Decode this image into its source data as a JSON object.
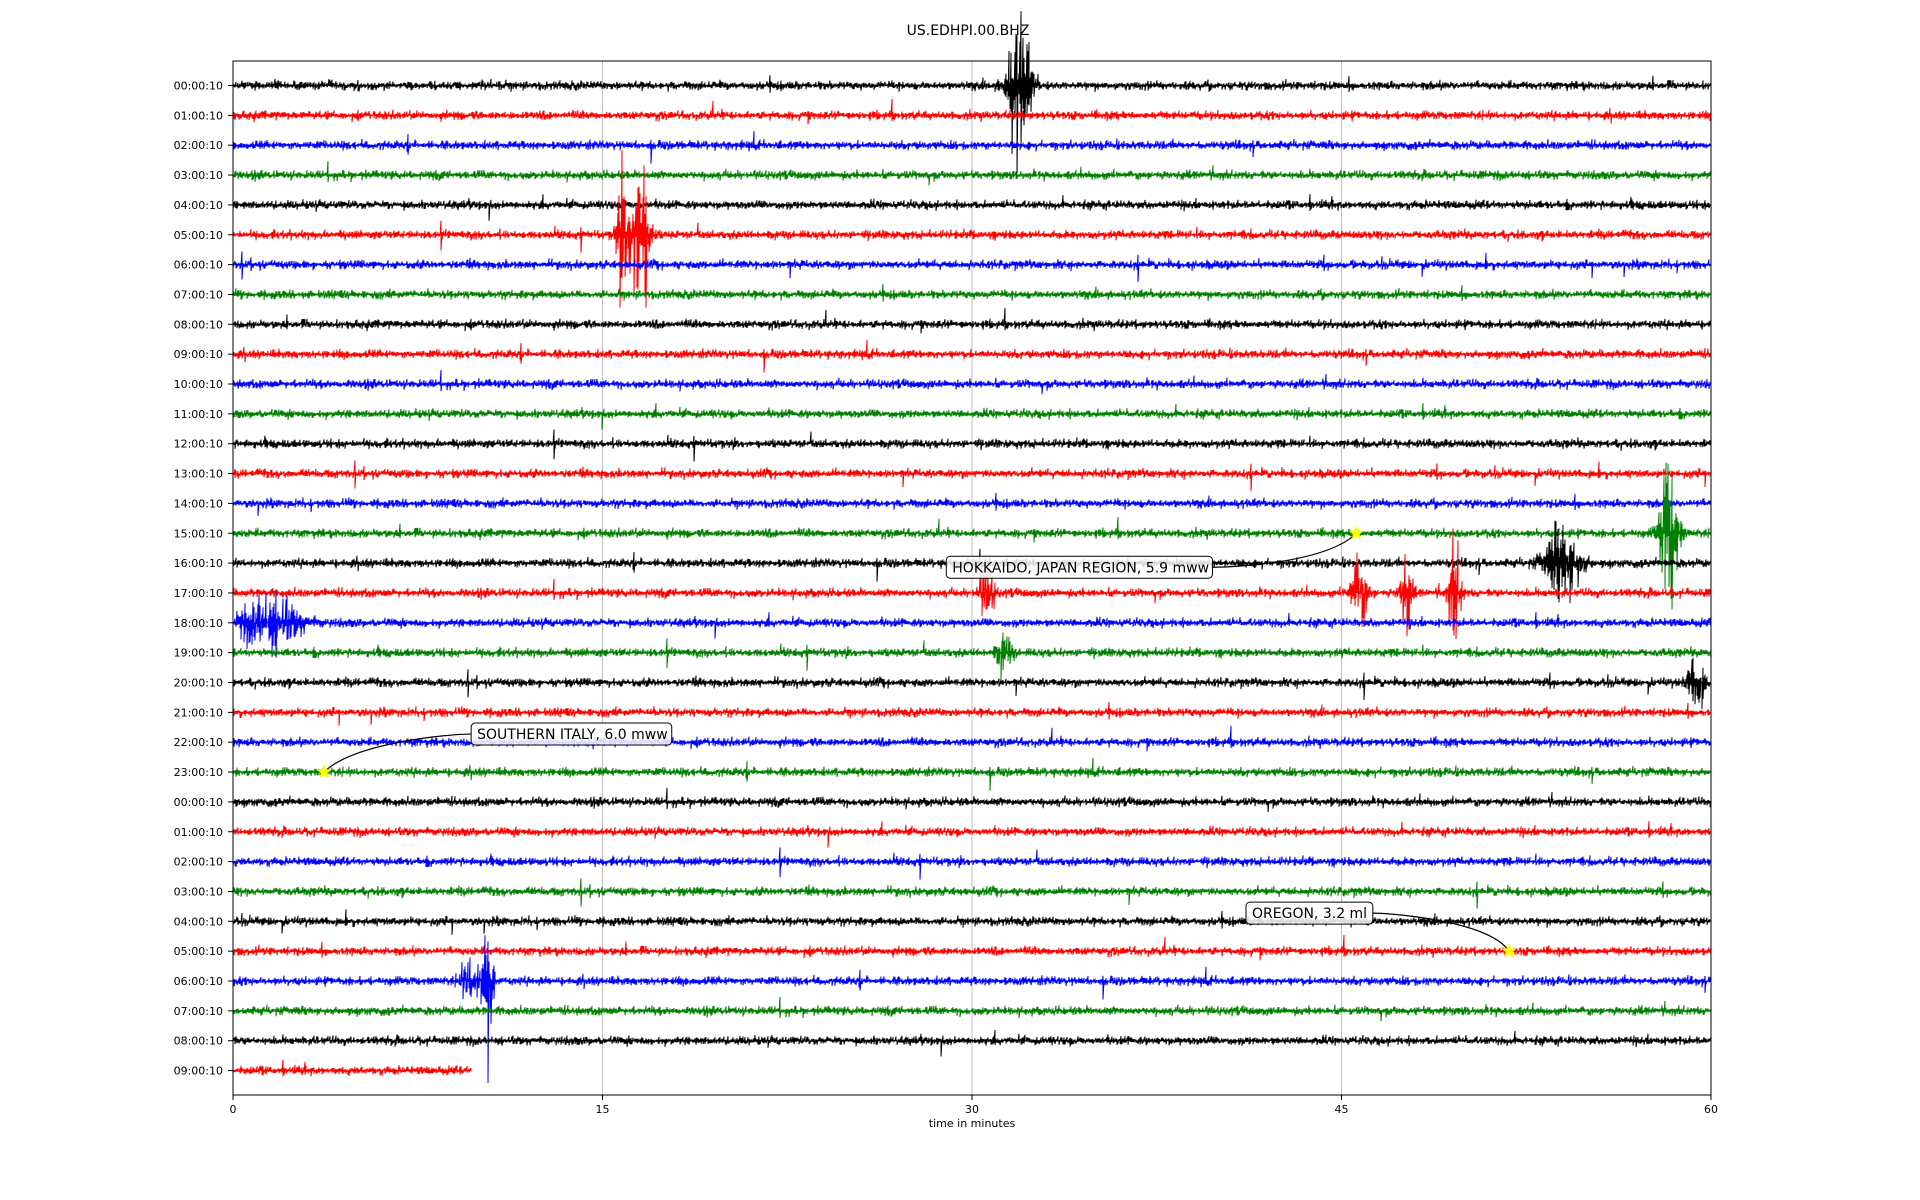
{
  "chart_data": {
    "type": "line",
    "title": "US.EDHPI.00.BHZ",
    "xlabel": "time in minutes",
    "ylabel": "",
    "xlim": [
      0,
      60
    ],
    "x_ticks": [
      0,
      15,
      30,
      45,
      60
    ],
    "x_tick_labels": [
      "0",
      "15",
      "30",
      "45",
      "60"
    ],
    "grid": "vertical gridlines at each x tick",
    "trace_colors": [
      "#000000",
      "#ff0000",
      "#0000ff",
      "#008000"
    ],
    "row_labels": [
      "00:00:10",
      "01:00:10",
      "02:00:10",
      "03:00:10",
      "04:00:10",
      "05:00:10",
      "06:00:10",
      "07:00:10",
      "08:00:10",
      "09:00:10",
      "10:00:10",
      "11:00:10",
      "12:00:10",
      "13:00:10",
      "14:00:10",
      "15:00:10",
      "16:00:10",
      "17:00:10",
      "18:00:10",
      "19:00:10",
      "20:00:10",
      "21:00:10",
      "22:00:10",
      "23:00:10",
      "00:00:10",
      "01:00:10",
      "02:00:10",
      "03:00:10",
      "04:00:10",
      "05:00:10",
      "06:00:10",
      "07:00:10",
      "08:00:10",
      "09:00:10"
    ],
    "last_row_end_minute": 9.7,
    "events": [
      {
        "row": 0,
        "minute": 31.9,
        "amplitude": 1.8,
        "width": 0.8
      },
      {
        "row": 5,
        "minute": 16.5,
        "amplitude": 3.0,
        "width": 0.6
      },
      {
        "row": 5,
        "minute": 15.8,
        "amplitude": 1.3,
        "width": 0.4
      },
      {
        "row": 15,
        "minute": 58.3,
        "amplitude": 2.2,
        "width": 0.6
      },
      {
        "row": 16,
        "minute": 54.0,
        "amplitude": 1.0,
        "width": 1.2
      },
      {
        "row": 17,
        "minute": 45.7,
        "amplitude": 0.9,
        "width": 0.6
      },
      {
        "row": 17,
        "minute": 47.6,
        "amplitude": 1.0,
        "width": 0.4
      },
      {
        "row": 17,
        "minute": 49.6,
        "amplitude": 1.3,
        "width": 0.4
      },
      {
        "row": 17,
        "minute": 30.6,
        "amplitude": 0.7,
        "width": 0.5
      },
      {
        "row": 18,
        "minute": 1.5,
        "amplitude": 0.7,
        "width": 2.0
      },
      {
        "row": 19,
        "minute": 31.3,
        "amplitude": 0.5,
        "width": 0.5
      },
      {
        "row": 20,
        "minute": 59.4,
        "amplitude": 0.7,
        "width": 0.6
      },
      {
        "row": 30,
        "minute": 10.3,
        "amplitude": 2.0,
        "width": 0.4
      },
      {
        "row": 30,
        "minute": 9.6,
        "amplitude": 0.6,
        "width": 0.6
      }
    ],
    "earthquakes": [
      {
        "label": "HOKKAIDO, JAPAN REGION, 5.9 mww",
        "row": 15,
        "minute": 45.6,
        "star_color": "#ffff00"
      },
      {
        "label": "SOUTHERN ITALY, 6.0 mww",
        "row": 23,
        "minute": 3.7,
        "star_color": "#ffff00"
      },
      {
        "label": "OREGON, 3.2 ml",
        "row": 29,
        "minute": 51.8,
        "star_color": "#ffff00"
      }
    ]
  }
}
